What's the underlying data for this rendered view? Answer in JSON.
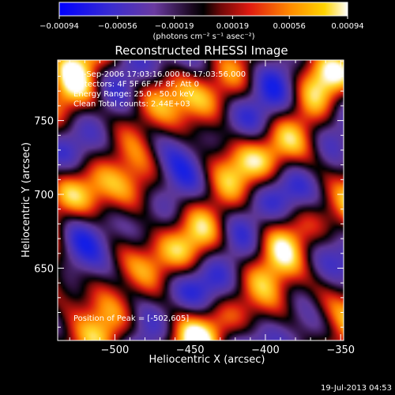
{
  "chart_data": {
    "type": "heatmap",
    "title": "Reconstructed RHESSI Image",
    "xlabel": "Heliocentric X (arcsec)",
    "ylabel": "Heliocentric Y (arcsec)",
    "xlim": [
      -538,
      -348
    ],
    "ylim": [
      601,
      791
    ],
    "xticks": [
      -500,
      -450,
      -400,
      -350
    ],
    "xtick_labels": [
      "−500",
      "−450",
      "−400",
      "−350"
    ],
    "yticks": [
      650,
      700,
      750
    ],
    "ytick_labels": [
      "650",
      "700",
      "750"
    ],
    "colorbar": {
      "min": -0.00094,
      "max": 0.00094,
      "ticks": [
        -0.00094,
        -0.00056,
        -0.00019,
        0.00019,
        0.00056,
        0.00094
      ],
      "tick_labels": [
        "−0.00094",
        "−0.00056",
        "−0.00019",
        "0.00019",
        "0.00056",
        "0.00094"
      ],
      "units": "(photons cm⁻² s⁻¹ asec⁻²)",
      "colors": [
        "#0000ff",
        "#5a2ca0",
        "#000000",
        "#c01818",
        "#ff8a00",
        "#ffffff"
      ]
    },
    "annotations": [
      "30-Sep-2006 17:03:16.000 to 17:03:56.000",
      "Detectors: 4F 5F 6F 7F 8F, Att 0",
      "Energy Range: 25.0 - 50.0 keV",
      "Clean    Total counts: 2.44E+03"
    ],
    "peak_label": "Position of Peak = [-502,605]",
    "peak": [
      -502,
      605
    ],
    "timestamp": "19-Jul-2013 04:53"
  }
}
